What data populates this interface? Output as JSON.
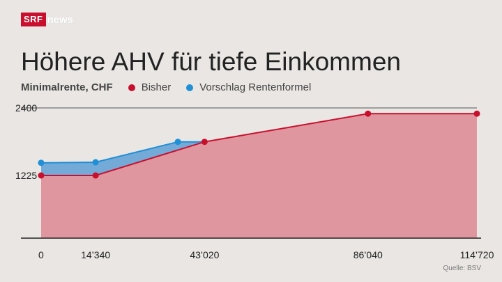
{
  "brand": {
    "logo_text": "SRF",
    "news_text": "news"
  },
  "colors": {
    "bisher": "#c8102e",
    "vorschlag": "#1f8fd6",
    "fill_bisher": "#e0969f",
    "fill_vorschlag": "#74aad8"
  },
  "source": "Quelle: BSV",
  "chart_data": {
    "type": "area",
    "title": "Höhere AHV für tiefe Einkommen",
    "subtitle": "Minimalrente, CHF",
    "legend_position": "top",
    "xlim": [
      0,
      114720
    ],
    "ylim": [
      0,
      2400
    ],
    "x_ticks": [
      0,
      14340,
      43020,
      86040,
      114720
    ],
    "x_tick_labels": [
      "0",
      "14’340",
      "43’020",
      "86’040",
      "114’720"
    ],
    "y_ticks": [
      1225,
      2400
    ],
    "y_tick_labels": [
      "1225",
      "2400"
    ],
    "series": [
      {
        "name": "Bisher",
        "color": "#c8102e",
        "points": [
          [
            0,
            1225
          ],
          [
            14340,
            1225
          ],
          [
            43020,
            1810
          ],
          [
            86040,
            2300
          ],
          [
            114720,
            2300
          ]
        ]
      },
      {
        "name": "Vorschlag Rentenformel",
        "color": "#1f8fd6",
        "points": [
          [
            0,
            1445
          ],
          [
            14340,
            1455
          ],
          [
            36000,
            1810
          ],
          [
            43020,
            1810
          ]
        ]
      }
    ]
  }
}
